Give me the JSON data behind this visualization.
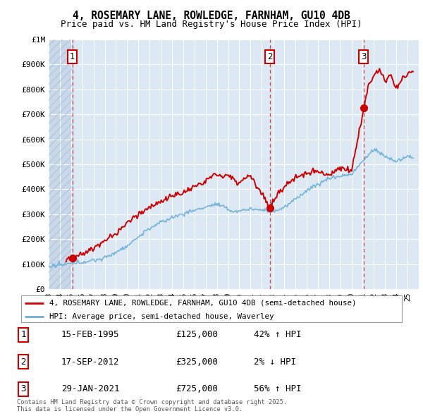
{
  "title": "4, ROSEMARY LANE, ROWLEDGE, FARNHAM, GU10 4DB",
  "subtitle": "Price paid vs. HM Land Registry's House Price Index (HPI)",
  "ylim": [
    0,
    1000000
  ],
  "yticks": [
    0,
    100000,
    200000,
    300000,
    400000,
    500000,
    600000,
    700000,
    800000,
    900000,
    1000000
  ],
  "ytick_labels": [
    "£0",
    "£100K",
    "£200K",
    "£300K",
    "£400K",
    "£500K",
    "£600K",
    "£700K",
    "£800K",
    "£900K",
    "£1M"
  ],
  "hpi_color": "#6baed6",
  "price_color": "#cc0000",
  "bg_color": "#dce9f5",
  "grid_color": "#ffffff",
  "purchases": [
    {
      "label": "1",
      "date_num": 1995.12,
      "price": 125000
    },
    {
      "label": "2",
      "date_num": 2012.72,
      "price": 325000
    },
    {
      "label": "3",
      "date_num": 2021.08,
      "price": 725000
    }
  ],
  "table_entries": [
    {
      "num": "1",
      "date": "15-FEB-1995",
      "price": "£125,000",
      "hpi": "42% ↑ HPI"
    },
    {
      "num": "2",
      "date": "17-SEP-2012",
      "price": "£325,000",
      "hpi": "2% ↓ HPI"
    },
    {
      "num": "3",
      "date": "29-JAN-2021",
      "price": "£725,000",
      "hpi": "56% ↑ HPI"
    }
  ],
  "legend_line1": "4, ROSEMARY LANE, ROWLEDGE, FARNHAM, GU10 4DB (semi-detached house)",
  "legend_line2": "HPI: Average price, semi-detached house, Waverley",
  "footer": "Contains HM Land Registry data © Crown copyright and database right 2025.\nThis data is licensed under the Open Government Licence v3.0.",
  "xmin": 1993,
  "xmax": 2026
}
